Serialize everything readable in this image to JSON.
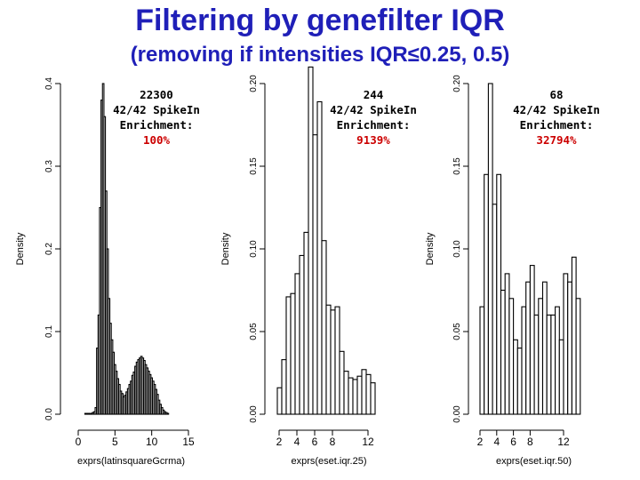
{
  "slide": {
    "title": "Filtering by genefilter IQR",
    "subtitle": "(removing if intensities IQR≤0.25, 0.5)"
  },
  "chart_data": [
    {
      "type": "histogram",
      "xlabel": "exprs(latinsquareGcrma)",
      "ylabel": "Density",
      "xticks": [
        0,
        5,
        10,
        15
      ],
      "yticks": [
        "0.0",
        "0.1",
        "0.2",
        "0.3",
        "0.4"
      ],
      "ylim": [
        0,
        0.4
      ],
      "bin_start": 0.9,
      "bin_width": 0.2,
      "values": [
        0.001,
        0.001,
        0.001,
        0.001,
        0.001,
        0.002,
        0.003,
        0.008,
        0.08,
        0.12,
        0.25,
        0.38,
        0.4,
        0.36,
        0.27,
        0.2,
        0.14,
        0.11,
        0.09,
        0.075,
        0.06,
        0.052,
        0.043,
        0.036,
        0.028,
        0.025,
        0.021,
        0.023,
        0.027,
        0.031,
        0.036,
        0.04,
        0.047,
        0.051,
        0.058,
        0.063,
        0.066,
        0.068,
        0.07,
        0.068,
        0.065,
        0.06,
        0.056,
        0.052,
        0.048,
        0.044,
        0.04,
        0.036,
        0.03,
        0.024,
        0.017,
        0.012,
        0.008,
        0.005,
        0.003,
        0.002,
        0.001
      ],
      "annotation": {
        "count": "22300",
        "spikein": "42/42 SpikeIn",
        "label": "Enrichment:",
        "enrichment": "100%"
      }
    },
    {
      "type": "histogram",
      "xlabel": "exprs(eset.iqr.25)",
      "ylabel": "Density",
      "xticks": [
        2,
        4,
        6,
        8,
        12
      ],
      "yticks": [
        "0.00",
        "0.05",
        "0.10",
        "0.15",
        "0.20"
      ],
      "ylim": [
        0,
        0.2
      ],
      "bin_start": 1.8,
      "bin_width": 0.5,
      "values": [
        0.016,
        0.033,
        0.071,
        0.073,
        0.085,
        0.096,
        0.11,
        0.21,
        0.169,
        0.189,
        0.105,
        0.066,
        0.063,
        0.065,
        0.038,
        0.026,
        0.022,
        0.021,
        0.023,
        0.027,
        0.024,
        0.019
      ],
      "annotation": {
        "count": "244",
        "spikein": "42/42 SpikeIn",
        "label": "Enrichment:",
        "enrichment": "9139%"
      }
    },
    {
      "type": "histogram",
      "xlabel": "exprs(eset.iqr.50)",
      "ylabel": "Density",
      "xticks": [
        2,
        4,
        6,
        8,
        12
      ],
      "yticks": [
        "0.00",
        "0.05",
        "0.10",
        "0.15",
        "0.20"
      ],
      "ylim": [
        0,
        0.2
      ],
      "bin_start": 2.0,
      "bin_width": 0.5,
      "values": [
        0.065,
        0.145,
        0.2,
        0.127,
        0.145,
        0.075,
        0.085,
        0.07,
        0.045,
        0.04,
        0.065,
        0.08,
        0.09,
        0.06,
        0.07,
        0.08,
        0.06,
        0.06,
        0.065,
        0.045,
        0.085,
        0.08,
        0.095,
        0.07
      ],
      "annotation": {
        "count": "68",
        "spikein": "42/42 SpikeIn",
        "label": "Enrichment:",
        "enrichment": "32794%"
      }
    }
  ],
  "colors": {
    "title": "#1f1fb8",
    "enrichment": "#cc0000",
    "bars": "#000000"
  }
}
